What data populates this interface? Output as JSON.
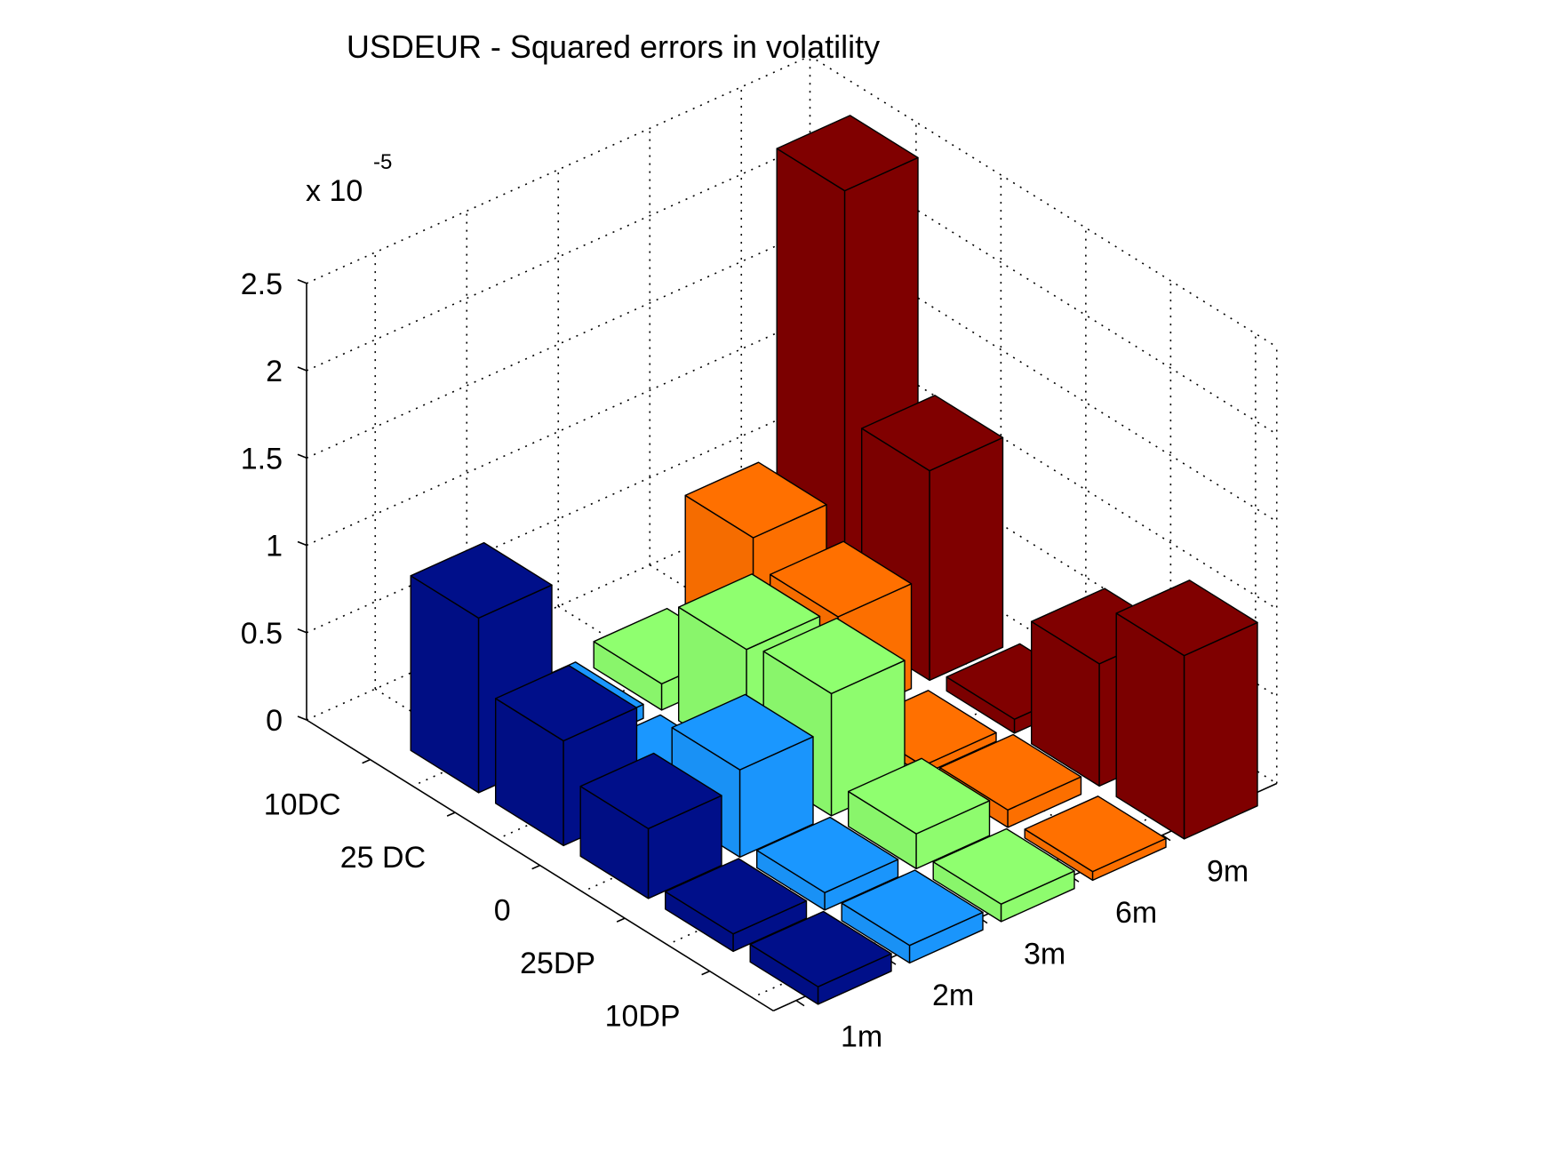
{
  "chart_data": {
    "type": "bar3d",
    "title": "USDEUR - Squared errors in volatility",
    "z_multiplier_label": "x 10",
    "z_multiplier_exponent": "-5",
    "z_ticks": [
      "0",
      "0.5",
      "1",
      "1.5",
      "2",
      "2.5"
    ],
    "zlim": [
      0,
      2.5
    ],
    "rows": [
      "10DC",
      "25 DC",
      "0",
      "25DP",
      "10DP"
    ],
    "columns": [
      "1m",
      "2m",
      "3m",
      "6m",
      "9m"
    ],
    "values": [
      [
        1.0,
        0.08,
        0.15,
        0.75,
        2.5
      ],
      [
        0.6,
        0.08,
        0.65,
        0.6,
        1.2
      ],
      [
        0.4,
        0.5,
        0.7,
        0.05,
        0.08
      ],
      [
        0.1,
        0.1,
        0.2,
        0.1,
        0.7
      ],
      [
        0.1,
        0.1,
        0.1,
        0.05,
        1.05
      ]
    ],
    "column_colors": [
      "#000f8a",
      "#1a97ff",
      "#8fff6f",
      "#ff7000",
      "#800000"
    ],
    "grid": true
  }
}
